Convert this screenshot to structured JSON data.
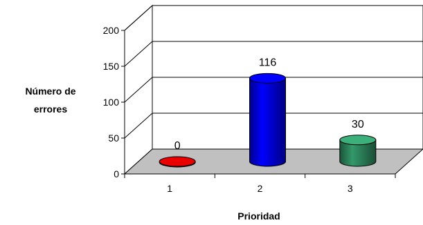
{
  "chart_data": {
    "type": "bar",
    "style": "3d-cylinder",
    "title": "",
    "xlabel": "Prioridad",
    "ylabel": [
      "Número de",
      "errores"
    ],
    "categories": [
      "1",
      "2",
      "3"
    ],
    "values": [
      0,
      116,
      30
    ],
    "data_labels": [
      "0",
      "116",
      "30"
    ],
    "yticks": [
      "0",
      "50",
      "100",
      "150",
      "200"
    ],
    "ylim": [
      0,
      200
    ],
    "grid": true,
    "legend": "none",
    "colors": {
      "bars": [
        "#cc0000",
        "#0000ff",
        "#33996a"
      ],
      "floor": "#c0c0c0"
    }
  }
}
